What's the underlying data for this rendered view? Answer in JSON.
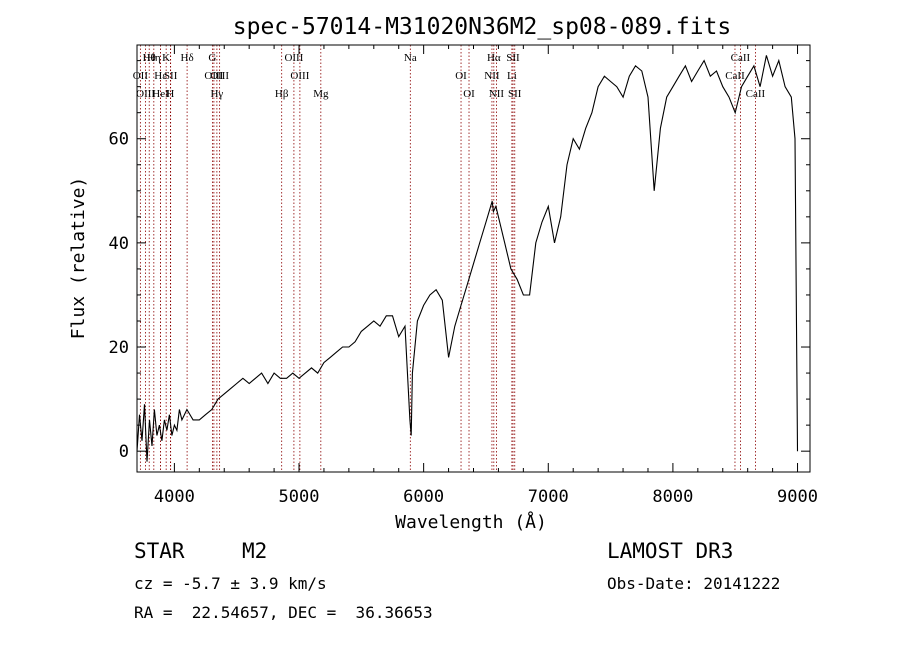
{
  "chart_data": {
    "type": "line",
    "title": "spec-57014-M31020N36M2_sp08-089.fits",
    "xlabel": "Wavelength (Å)",
    "ylabel": "Flux (relative)",
    "xlim": [
      3700,
      9100
    ],
    "ylim": [
      -4,
      78
    ],
    "x_ticks": [
      4000,
      5000,
      6000,
      7000,
      8000,
      9000
    ],
    "y_ticks": [
      0,
      20,
      40,
      60
    ],
    "grid": false,
    "line_color": "#000000",
    "marker_color": "#8b0000",
    "series": [
      {
        "x": [
          3700,
          3720,
          3740,
          3760,
          3780,
          3800,
          3820,
          3840,
          3860,
          3880,
          3900,
          3920,
          3940,
          3960,
          3980,
          4000,
          4020,
          4040,
          4060,
          4080,
          4100,
          4150,
          4200,
          4250,
          4300,
          4350,
          4400,
          4450,
          4500,
          4550,
          4600,
          4650,
          4700,
          4750,
          4800,
          4850,
          4900,
          4950,
          5000,
          5050,
          5100,
          5150,
          5200,
          5250,
          5300,
          5350,
          5400,
          5450,
          5500,
          5550,
          5600,
          5650,
          5700,
          5750,
          5800,
          5850,
          5890,
          5900,
          5910,
          5950,
          6000,
          6050,
          6100,
          6150,
          6200,
          6250,
          6300,
          6350,
          6400,
          6450,
          6500,
          6550,
          6560,
          6580,
          6600,
          6650,
          6700,
          6750,
          6800,
          6850,
          6900,
          6950,
          7000,
          7050,
          7100,
          7150,
          7200,
          7250,
          7300,
          7350,
          7400,
          7450,
          7500,
          7550,
          7600,
          7650,
          7700,
          7750,
          7800,
          7850,
          7900,
          7950,
          8000,
          8050,
          8100,
          8150,
          8200,
          8250,
          8300,
          8350,
          8400,
          8450,
          8500,
          8550,
          8600,
          8650,
          8700,
          8750,
          8800,
          8850,
          8900,
          8950,
          8980,
          9000
        ],
        "values": [
          0,
          7,
          2,
          9,
          -2,
          6,
          1,
          8,
          3,
          5,
          2,
          6,
          4,
          7,
          3,
          5,
          4,
          8,
          6,
          7,
          8,
          6,
          6,
          7,
          8,
          10,
          11,
          12,
          13,
          14,
          13,
          14,
          15,
          13,
          15,
          14,
          14,
          15,
          14,
          15,
          16,
          15,
          17,
          18,
          19,
          20,
          20,
          21,
          23,
          24,
          25,
          24,
          26,
          26,
          22,
          24,
          6,
          3,
          15,
          25,
          28,
          30,
          31,
          29,
          18,
          24,
          28,
          32,
          36,
          40,
          44,
          48,
          46,
          47,
          45,
          40,
          35,
          33,
          30,
          30,
          40,
          44,
          47,
          40,
          45,
          55,
          60,
          58,
          62,
          65,
          70,
          72,
          71,
          70,
          68,
          72,
          74,
          73,
          68,
          50,
          62,
          68,
          70,
          72,
          74,
          71,
          73,
          75,
          72,
          73,
          70,
          68,
          65,
          70,
          72,
          74,
          70,
          76,
          72,
          75,
          70,
          68,
          60,
          0
        ]
      }
    ],
    "lines": [
      {
        "label": "Hθ",
        "x": 3798
      },
      {
        "label": "OII",
        "x": 3727
      },
      {
        "label": "OIII",
        "x": 3769
      },
      {
        "label": "K",
        "x": 3934
      },
      {
        "label": "Hε",
        "x": 3889
      },
      {
        "label": "HeI",
        "x": 3889
      },
      {
        "label": "Hη",
        "x": 3835
      },
      {
        "label": "SII",
        "x": 3970
      },
      {
        "label": "H",
        "x": 3968
      },
      {
        "label": "Hδ",
        "x": 4102
      },
      {
        "label": "OIII",
        "x": 4317
      },
      {
        "label": "Hγ",
        "x": 4341
      },
      {
        "label": "G",
        "x": 4305
      },
      {
        "label": "OIII",
        "x": 4363
      },
      {
        "label": "Hβ",
        "x": 4861
      },
      {
        "label": "OIII",
        "x": 4959
      },
      {
        "label": "OIII",
        "x": 5007
      },
      {
        "label": "Mg",
        "x": 5175
      },
      {
        "label": "Na",
        "x": 5893
      },
      {
        "label": "OI",
        "x": 6300
      },
      {
        "label": "OI",
        "x": 6364
      },
      {
        "label": "Hα",
        "x": 6563
      },
      {
        "label": "NII",
        "x": 6548
      },
      {
        "label": "NII",
        "x": 6584
      },
      {
        "label": "SII",
        "x": 6717
      },
      {
        "label": "Li",
        "x": 6708
      },
      {
        "label": "SII",
        "x": 6731
      },
      {
        "label": "CaII",
        "x": 8542
      },
      {
        "label": "CaII",
        "x": 8498
      },
      {
        "label": "CaII",
        "x": 8662
      }
    ]
  },
  "info": {
    "type_label": "STAR",
    "subclass": "M2",
    "survey": "LAMOST DR3",
    "cz": "cz = -5.7 ± 3.9 km/s",
    "obs_date": "Obs-Date: 20141222",
    "coords": "RA =  22.54657, DEC =  36.36653"
  }
}
